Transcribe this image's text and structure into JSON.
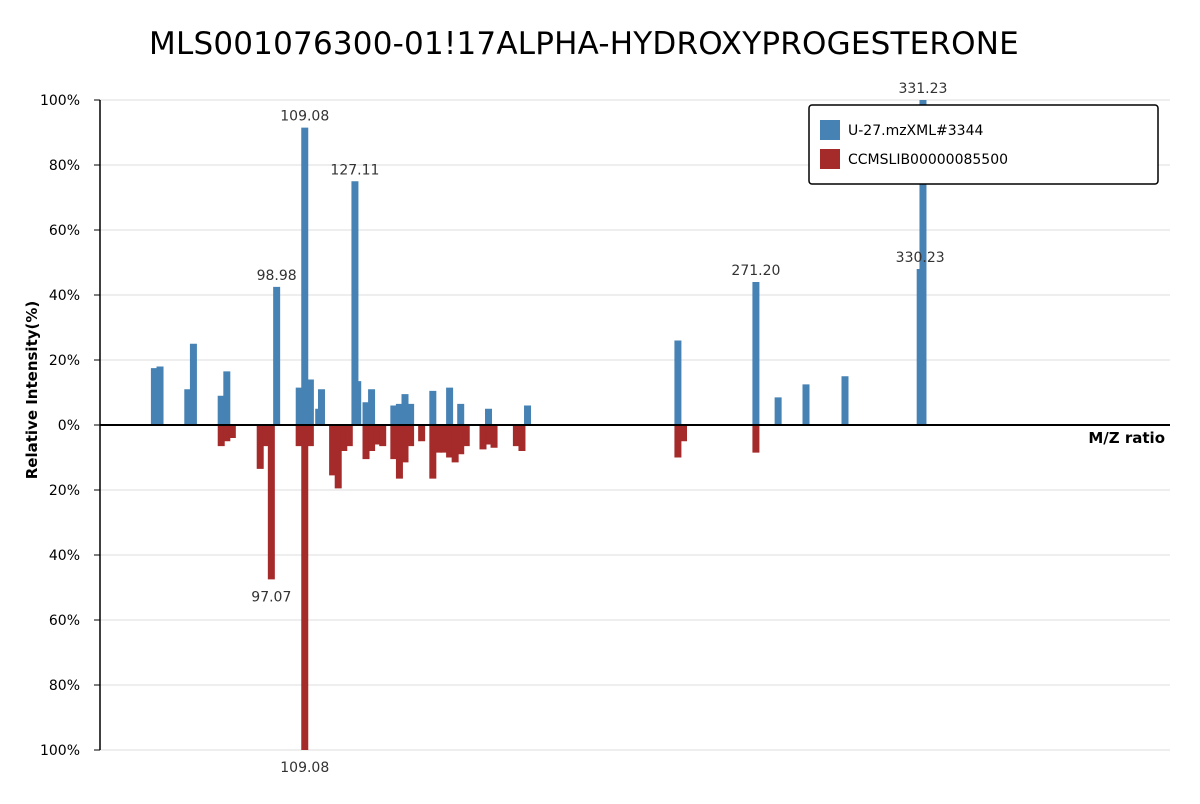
{
  "chart_data": {
    "type": "bar",
    "title": "MLS001076300-01!17ALPHA-HYDROXYPROGESTERONE",
    "xlabel": "M/Z ratio",
    "ylabel": "Relative Intensity(%)",
    "ylim": [
      -100,
      100
    ],
    "ytick_labels": [
      "100%",
      "80%",
      "60%",
      "40%",
      "20%",
      "0%",
      "20%",
      "40%",
      "60%",
      "80%",
      "100%"
    ],
    "ytick_values": [
      100,
      80,
      60,
      40,
      20,
      0,
      -20,
      -40,
      -60,
      -80,
      -100
    ],
    "grid": true,
    "legend_position": "top-right",
    "legend": [
      {
        "name": "U-27.mzXML#3344",
        "color": "#4682b4"
      },
      {
        "name": "CCMSLIB00000085500",
        "color": "#a52a2a"
      }
    ],
    "series": [
      {
        "name": "U-27.mzXML#3344",
        "direction": "up",
        "color": "#4682b4",
        "peaks": [
          {
            "mz": 55.05,
            "intensity": 17.5
          },
          {
            "mz": 57.07,
            "intensity": 18
          },
          {
            "mz": 67.05,
            "intensity": 11
          },
          {
            "mz": 69.07,
            "intensity": 25
          },
          {
            "mz": 79.05,
            "intensity": 9
          },
          {
            "mz": 81.07,
            "intensity": 16.5
          },
          {
            "mz": 98.98,
            "intensity": 42.5,
            "label": "98.98"
          },
          {
            "mz": 107.09,
            "intensity": 11.5
          },
          {
            "mz": 109.08,
            "intensity": 91.5,
            "label": "109.08"
          },
          {
            "mz": 111.1,
            "intensity": 14
          },
          {
            "mz": 114.09,
            "intensity": 5
          },
          {
            "mz": 115.09,
            "intensity": 11
          },
          {
            "mz": 127.11,
            "intensity": 75,
            "label": "127.11"
          },
          {
            "mz": 128.11,
            "intensity": 13.5
          },
          {
            "mz": 131.09,
            "intensity": 7
          },
          {
            "mz": 133.09,
            "intensity": 11
          },
          {
            "mz": 141.09,
            "intensity": 6
          },
          {
            "mz": 143.09,
            "intensity": 6.5
          },
          {
            "mz": 145.1,
            "intensity": 9.5
          },
          {
            "mz": 147.12,
            "intensity": 6.5
          },
          {
            "mz": 155.1,
            "intensity": 10.5
          },
          {
            "mz": 161.13,
            "intensity": 11.5
          },
          {
            "mz": 165.12,
            "intensity": 6.5
          },
          {
            "mz": 175.11,
            "intensity": 5
          },
          {
            "mz": 189.13,
            "intensity": 6
          },
          {
            "mz": 243.17,
            "intensity": 26
          },
          {
            "mz": 271.2,
            "intensity": 44,
            "label": "271.20"
          },
          {
            "mz": 279.18,
            "intensity": 8.5
          },
          {
            "mz": 289.2,
            "intensity": 12.5
          },
          {
            "mz": 303.21,
            "intensity": 15
          },
          {
            "mz": 330.23,
            "intensity": 48,
            "label": "330.23"
          },
          {
            "mz": 331.23,
            "intensity": 100,
            "label": "331.23"
          }
        ]
      },
      {
        "name": "CCMSLIB00000085500",
        "direction": "down",
        "color": "#a52a2a",
        "peaks": [
          {
            "mz": 79.06,
            "intensity": 6.5
          },
          {
            "mz": 81.07,
            "intensity": 5
          },
          {
            "mz": 83.05,
            "intensity": 4
          },
          {
            "mz": 93.07,
            "intensity": 13.5
          },
          {
            "mz": 95.09,
            "intensity": 6.5
          },
          {
            "mz": 97.07,
            "intensity": 47.5,
            "label": "97.07"
          },
          {
            "mz": 107.07,
            "intensity": 6.5
          },
          {
            "mz": 109.08,
            "intensity": 100,
            "label": "109.08"
          },
          {
            "mz": 111.09,
            "intensity": 6.5
          },
          {
            "mz": 119.09,
            "intensity": 15.5
          },
          {
            "mz": 121.1,
            "intensity": 19.5
          },
          {
            "mz": 123.1,
            "intensity": 8
          },
          {
            "mz": 125.08,
            "intensity": 6.5
          },
          {
            "mz": 131.09,
            "intensity": 10.5
          },
          {
            "mz": 133.1,
            "intensity": 8
          },
          {
            "mz": 135.12,
            "intensity": 6
          },
          {
            "mz": 137.09,
            "intensity": 6.5
          },
          {
            "mz": 141.09,
            "intensity": 10.5
          },
          {
            "mz": 143.1,
            "intensity": 16.5
          },
          {
            "mz": 145.1,
            "intensity": 11.5
          },
          {
            "mz": 147.11,
            "intensity": 6.5
          },
          {
            "mz": 151.08,
            "intensity": 5
          },
          {
            "mz": 155.1,
            "intensity": 16.5
          },
          {
            "mz": 157.11,
            "intensity": 8.5
          },
          {
            "mz": 159.12,
            "intensity": 8.5
          },
          {
            "mz": 161.13,
            "intensity": 10
          },
          {
            "mz": 163.12,
            "intensity": 11.5
          },
          {
            "mz": 165.12,
            "intensity": 9
          },
          {
            "mz": 167.1,
            "intensity": 6.5
          },
          {
            "mz": 173.13,
            "intensity": 7.5
          },
          {
            "mz": 175.11,
            "intensity": 6
          },
          {
            "mz": 177.1,
            "intensity": 7
          },
          {
            "mz": 185.13,
            "intensity": 6.5
          },
          {
            "mz": 187.13,
            "intensity": 8
          },
          {
            "mz": 243.17,
            "intensity": 10
          },
          {
            "mz": 245.18,
            "intensity": 5
          },
          {
            "mz": 271.2,
            "intensity": 8.5
          }
        ]
      }
    ]
  }
}
